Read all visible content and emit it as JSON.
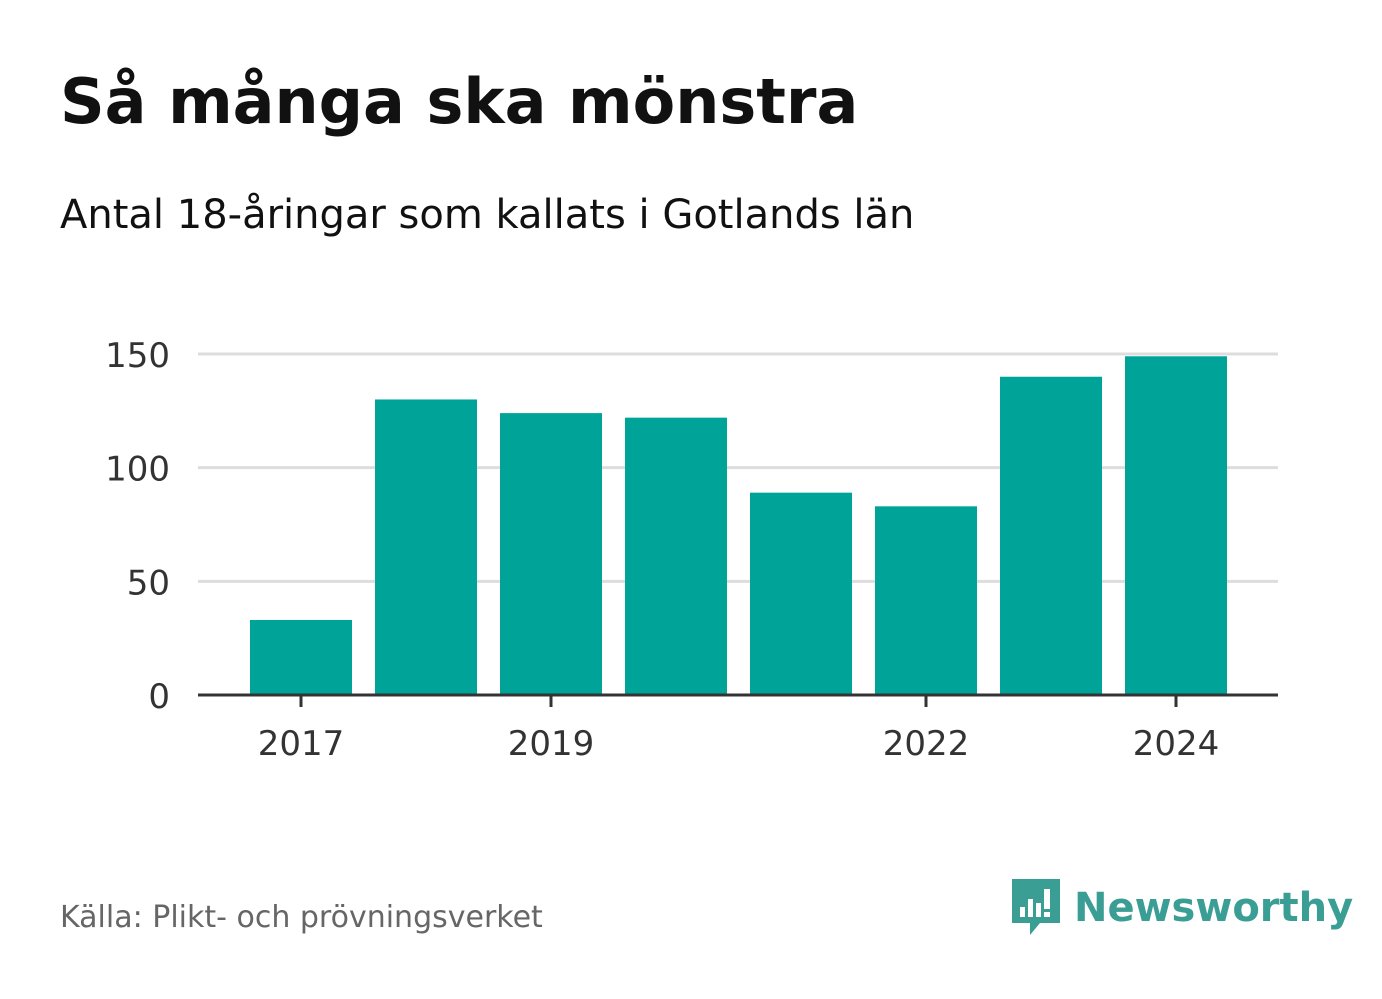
{
  "title": "Så många ska mönstra",
  "subtitle": "Antal 18-åringar som kallats i Gotlands län",
  "source": "Källa: Plikt- och prövningsverket",
  "brand": {
    "name": "Newsworthy",
    "icon": "newsworthy-logo-icon"
  },
  "colors": {
    "bar": "#00a398",
    "grid": "#dddddd",
    "axis": "#333333",
    "brand": "#3a9e95"
  },
  "chart_data": {
    "type": "bar",
    "title": "Så många ska mönstra",
    "subtitle": "Antal 18-åringar som kallats i Gotlands län",
    "categories": [
      "2017",
      "2018",
      "2019",
      "2020",
      "2021",
      "2022",
      "2023",
      "2024"
    ],
    "values": [
      33,
      130,
      124,
      122,
      89,
      83,
      140,
      149
    ],
    "x_tick_labels": [
      "2017",
      "2019",
      "2022",
      "2024"
    ],
    "y_ticks": [
      0,
      50,
      100,
      150
    ],
    "ylim": [
      0,
      150
    ],
    "xlabel": "",
    "ylabel": "",
    "grid": true
  }
}
